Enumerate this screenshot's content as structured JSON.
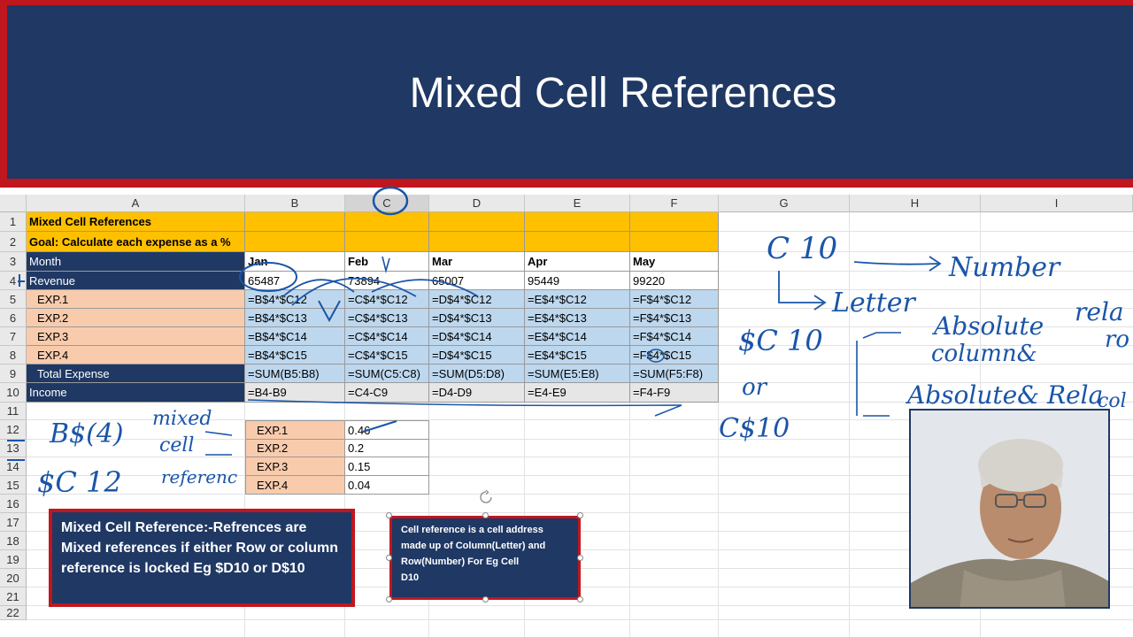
{
  "slide": {
    "title": "Mixed Cell References"
  },
  "spreadsheet": {
    "columns": [
      "A",
      "B",
      "C",
      "D",
      "E",
      "F",
      "G",
      "H",
      "I"
    ],
    "rows": [
      "1",
      "2",
      "3",
      "4",
      "5",
      "6",
      "7",
      "8",
      "9",
      "10",
      "11",
      "12",
      "13",
      "14",
      "15",
      "16",
      "17",
      "18",
      "19",
      "20",
      "21",
      "22"
    ],
    "a1": "Mixed Cell References",
    "a2": "Goal: Calculate each expense as a %",
    "row3": [
      "Month",
      "Jan",
      "Feb",
      "Mar",
      "Apr",
      "May"
    ],
    "row4": [
      "Revenue",
      "65487",
      "73894",
      "65007",
      "95449",
      "99220"
    ],
    "row5": [
      "EXP.1",
      "=B$4*$C12",
      "=C$4*$C12",
      "=D$4*$C12",
      "=E$4*$C12",
      "=F$4*$C12"
    ],
    "row6": [
      "EXP.2",
      "=B$4*$C13",
      "=C$4*$C13",
      "=D$4*$C13",
      "=E$4*$C13",
      "=F$4*$C13"
    ],
    "row7": [
      "EXP.3",
      "=B$4*$C14",
      "=C$4*$C14",
      "=D$4*$C14",
      "=E$4*$C14",
      "=F$4*$C14"
    ],
    "row8": [
      "EXP.4",
      "=B$4*$C15",
      "=C$4*$C15",
      "=D$4*$C15",
      "=E$4*$C15",
      "=F$4*$C15"
    ],
    "row9": [
      "Total Expense",
      "=SUM(B5:B8)",
      "=SUM(C5:C8)",
      "=SUM(D5:D8)",
      "=SUM(E5:E8)",
      "=SUM(F5:F8)"
    ],
    "row10": [
      "Income",
      "=B4-B9",
      "=C4-C9",
      "=D4-D9",
      "=E4-E9",
      "=F4-F9"
    ],
    "pct_table": [
      {
        "label": "EXP.1",
        "value": "0.46"
      },
      {
        "label": "EXP.2",
        "value": "0.2"
      },
      {
        "label": "EXP.3",
        "value": "0.15"
      },
      {
        "label": "EXP.4",
        "value": "0.04"
      }
    ]
  },
  "textbox_mixed": {
    "text": "Mixed Cell Reference:-Refrences are Mixed references if either Row or column reference is locked Eg $D10 or D$10"
  },
  "textbox_cellref": {
    "line1": "Cell reference is a cell address",
    "line2": "made up of Column(Letter) and",
    "line3": "Row(Number) For Eg  Cell",
    "line4": "D10"
  },
  "annotations": {
    "c10": "C 10",
    "number": "Number",
    "letter": "Letter",
    "dollar_c10": "$C 10",
    "absolute_col": "Absolute",
    "absolute_col2": "column&",
    "rel1": "rela",
    "rel2": "ro",
    "or": "or",
    "c_dollar10": "C$10",
    "abs_rel": "Absolute& Rela",
    "col3": "col",
    "b4": "B$(4)",
    "mixed1": "mixed",
    "mixed2": "cell",
    "mixed3": "referenc",
    "c12": "$C 12"
  },
  "colors": {
    "navy": "#1f3864",
    "red": "#c0161d",
    "gold": "#ffc000",
    "peach": "#f8cbad",
    "blue": "#bdd7ee",
    "ink": "#1a55a8"
  }
}
